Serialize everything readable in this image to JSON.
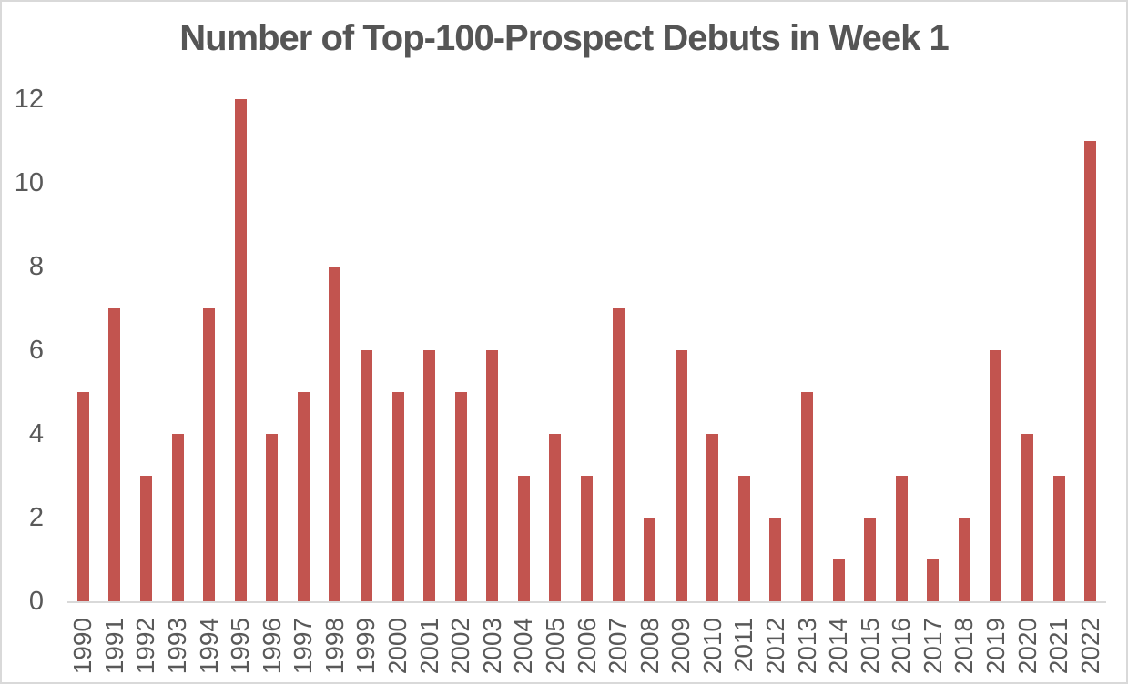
{
  "chart_data": {
    "type": "bar",
    "title": "Number of Top-100-Prospect Debuts in Week 1",
    "categories": [
      "1990",
      "1991",
      "1992",
      "1993",
      "1994",
      "1995",
      "1996",
      "1997",
      "1998",
      "1999",
      "2000",
      "2001",
      "2002",
      "2003",
      "2004",
      "2005",
      "2006",
      "2007",
      "2008",
      "2009",
      "2010",
      "2011",
      "2012",
      "2013",
      "2014",
      "2015",
      "2016",
      "2017",
      "2018",
      "2019",
      "2020",
      "2021",
      "2022"
    ],
    "values": [
      5,
      7,
      3,
      4,
      7,
      12,
      4,
      5,
      8,
      6,
      5,
      6,
      5,
      6,
      3,
      4,
      3,
      7,
      2,
      6,
      4,
      3,
      2,
      5,
      1,
      2,
      3,
      1,
      2,
      6,
      4,
      3,
      11
    ],
    "xlabel": "",
    "ylabel": "",
    "ylim": [
      0,
      12
    ],
    "yticks": [
      0,
      2,
      4,
      6,
      8,
      10,
      12
    ],
    "x_tick_rotation_degrees": 90,
    "grid": false,
    "legend": false,
    "colors": {
      "bar": "#C2544F",
      "title_text": "#555555",
      "axis_label_text": "#595959",
      "axis_line": "#D9D9D9",
      "chart_border": "#D9D9D9",
      "background": "#FFFFFF"
    }
  }
}
